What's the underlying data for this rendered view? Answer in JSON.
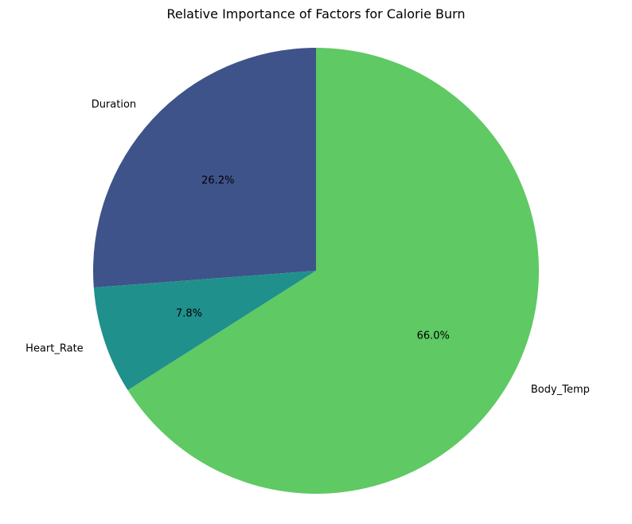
{
  "chart_data": {
    "type": "pie",
    "title": "Relative Importance of Factors for Calorie Burn",
    "slices": [
      {
        "label": "Duration",
        "value": 26.2,
        "pct_text": "26.2%",
        "color": "#3e5389"
      },
      {
        "label": "Heart_Rate",
        "value": 7.8,
        "pct_text": "7.8%",
        "color": "#20908c"
      },
      {
        "label": "Body_Temp",
        "value": 66.0,
        "pct_text": "66.0%",
        "color": "#5fc963"
      }
    ],
    "start_angle": "top",
    "direction": "counterclockwise"
  }
}
